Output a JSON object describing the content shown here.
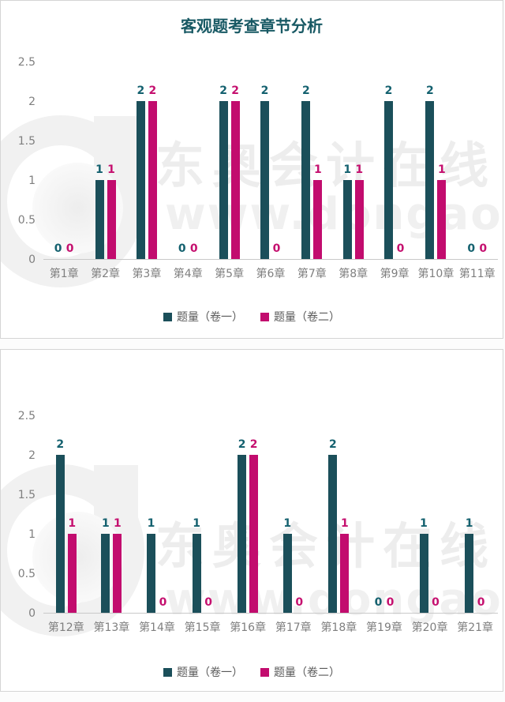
{
  "watermark": {
    "brand": "东奥会计在线",
    "url": "www.dongao.com"
  },
  "colors": {
    "series1": "#1b4f5a",
    "series2": "#c20c6e",
    "series1_label": "#14616f",
    "series2_label": "#c5106f",
    "title": "#185964"
  },
  "chart_data": [
    {
      "type": "bar",
      "title": "客观题考查章节分析",
      "categories": [
        "第1章",
        "第2章",
        "第3章",
        "第4章",
        "第5章",
        "第6章",
        "第7章",
        "第8章",
        "第9章",
        "第10章",
        "第11章"
      ],
      "series": [
        {
          "name": "题量（卷一）",
          "color": "#1b4f5a",
          "values": [
            0,
            1,
            2,
            0,
            2,
            2,
            2,
            1,
            2,
            2,
            0
          ]
        },
        {
          "name": "题量（卷二）",
          "color": "#c20c6e",
          "values": [
            0,
            1,
            2,
            0,
            2,
            0,
            1,
            1,
            0,
            1,
            0
          ]
        }
      ],
      "xlabel": "",
      "ylabel": "",
      "ylim": [
        0,
        2.5
      ],
      "yticks": [
        0,
        0.5,
        1,
        1.5,
        2,
        2.5
      ],
      "grid": false,
      "data_labels": true,
      "legend_position": "bottom"
    },
    {
      "type": "bar",
      "title": "",
      "categories": [
        "第12章",
        "第13章",
        "第14章",
        "第15章",
        "第16章",
        "第17章",
        "第18章",
        "第19章",
        "第20章",
        "第21章"
      ],
      "series": [
        {
          "name": "题量（卷一）",
          "color": "#1b4f5a",
          "values": [
            2,
            1,
            1,
            1,
            2,
            1,
            2,
            0,
            1,
            1
          ]
        },
        {
          "name": "题量（卷二）",
          "color": "#c20c6e",
          "values": [
            1,
            1,
            0,
            0,
            2,
            0,
            1,
            0,
            0,
            0
          ]
        }
      ],
      "xlabel": "",
      "ylabel": "",
      "ylim": [
        0,
        2.5
      ],
      "yticks": [
        0,
        0.5,
        1,
        1.5,
        2,
        2.5
      ],
      "grid": false,
      "data_labels": true,
      "legend_position": "bottom"
    }
  ]
}
